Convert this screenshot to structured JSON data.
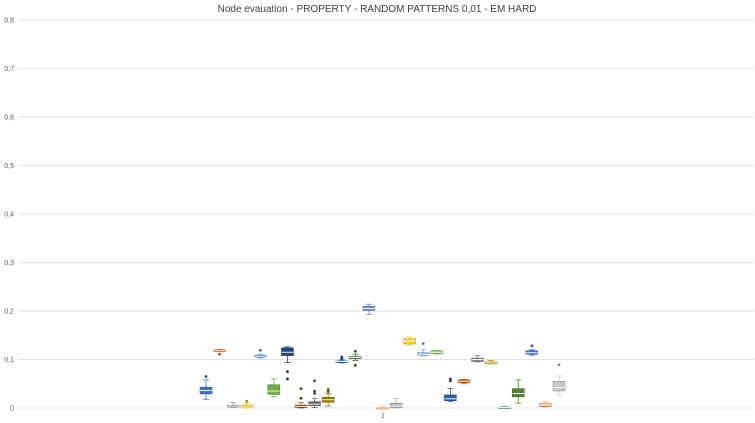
{
  "chart_data": {
    "type": "box",
    "title": "Node evauation - PROPERTY - RANDOM PATTERNS 0,01 - EM HARD",
    "xlabel": "",
    "ylabel": "",
    "categories": [
      "1"
    ],
    "ylim": [
      0,
      0.8
    ],
    "yticks": [
      "0",
      "0,1",
      "0,2",
      "0,3",
      "0,4",
      "0,5",
      "0,6",
      "0,7",
      "0,8"
    ],
    "grid": true,
    "legend": "none",
    "series": [
      {
        "color": "#4472c4",
        "min": 0.018,
        "q1": 0.029,
        "median": 0.036,
        "q3": 0.043,
        "max": 0.058,
        "outliers": [
          0.065
        ]
      },
      {
        "color": "#ed7d31",
        "min": 0.116,
        "q1": 0.116,
        "median": 0.118,
        "q3": 0.12,
        "max": 0.121,
        "outliers": [
          0.111
        ]
      },
      {
        "color": "#a5a5a5",
        "min": 0.001,
        "q1": 0.002,
        "median": 0.004,
        "q3": 0.006,
        "max": 0.011,
        "outliers": []
      },
      {
        "color": "#ffc000",
        "min": 0.0,
        "q1": 0.001,
        "median": 0.002,
        "q3": 0.005,
        "max": 0.009,
        "outliers": [
          0.014
        ]
      },
      {
        "color": "#5b9bd5",
        "min": 0.103,
        "q1": 0.105,
        "median": 0.107,
        "q3": 0.109,
        "max": 0.111,
        "outliers": [
          0.119
        ]
      },
      {
        "color": "#70ad47",
        "min": 0.023,
        "q1": 0.028,
        "median": 0.035,
        "q3": 0.048,
        "max": 0.06,
        "outliers": []
      },
      {
        "color": "#264478",
        "min": 0.094,
        "q1": 0.108,
        "median": 0.115,
        "q3": 0.124,
        "max": 0.126,
        "outliers": [
          0.075,
          0.06
        ]
      },
      {
        "color": "#9e480e",
        "min": 0.0,
        "q1": 0.001,
        "median": 0.003,
        "q3": 0.006,
        "max": 0.011,
        "outliers": [
          0.04,
          0.02
        ]
      },
      {
        "color": "#636363",
        "min": 0.001,
        "q1": 0.005,
        "median": 0.008,
        "q3": 0.013,
        "max": 0.02,
        "outliers": [
          0.056,
          0.035,
          0.03
        ]
      },
      {
        "color": "#997300",
        "min": 0.004,
        "q1": 0.012,
        "median": 0.017,
        "q3": 0.022,
        "max": 0.03,
        "outliers": [
          0.038,
          0.034
        ]
      },
      {
        "color": "#255e91",
        "min": 0.093,
        "q1": 0.094,
        "median": 0.096,
        "q3": 0.097,
        "max": 0.099,
        "outliers": [
          0.102,
          0.105
        ]
      },
      {
        "color": "#43682b",
        "min": 0.098,
        "q1": 0.102,
        "median": 0.104,
        "q3": 0.106,
        "max": 0.111,
        "outliers": [
          0.117,
          0.088
        ]
      },
      {
        "color": "#698ed0",
        "min": 0.193,
        "q1": 0.201,
        "median": 0.205,
        "q3": 0.21,
        "max": 0.214,
        "outliers": []
      },
      {
        "color": "#f1975a",
        "min": 0.0,
        "q1": 0.0,
        "median": 0.0,
        "q3": 0.001,
        "max": 0.002,
        "outliers": []
      },
      {
        "color": "#b7b7b7",
        "min": 0.0,
        "q1": 0.001,
        "median": 0.004,
        "q3": 0.01,
        "max": 0.02,
        "outliers": []
      },
      {
        "color": "#ffcd33",
        "min": 0.13,
        "q1": 0.132,
        "median": 0.138,
        "q3": 0.143,
        "max": 0.147,
        "outliers": []
      },
      {
        "color": "#7cafdd",
        "min": 0.107,
        "q1": 0.109,
        "median": 0.111,
        "q3": 0.114,
        "max": 0.12,
        "outliers": [
          0.133
        ]
      },
      {
        "color": "#8cc168",
        "min": 0.111,
        "q1": 0.112,
        "median": 0.115,
        "q3": 0.118,
        "max": 0.119,
        "outliers": []
      },
      {
        "color": "#335aa1",
        "min": 0.013,
        "q1": 0.015,
        "median": 0.019,
        "q3": 0.027,
        "max": 0.04,
        "outliers": [
          0.06,
          0.056
        ]
      },
      {
        "color": "#d26012",
        "min": 0.05,
        "q1": 0.052,
        "median": 0.055,
        "q3": 0.058,
        "max": 0.059,
        "outliers": []
      },
      {
        "color": "#848484",
        "min": 0.095,
        "q1": 0.096,
        "median": 0.1,
        "q3": 0.103,
        "max": 0.108,
        "outliers": []
      },
      {
        "color": "#cc9a00",
        "min": 0.091,
        "q1": 0.091,
        "median": 0.093,
        "q3": 0.095,
        "max": 0.098,
        "outliers": []
      },
      {
        "color": "#5b9bd5",
        "min": 0.0,
        "q1": 0.0,
        "median": 0.001,
        "q3": 0.002,
        "max": 0.003,
        "outliers": []
      },
      {
        "color": "#548235",
        "min": 0.01,
        "q1": 0.023,
        "median": 0.03,
        "q3": 0.04,
        "max": 0.058,
        "outliers": []
      },
      {
        "color": "#4472c4",
        "min": 0.109,
        "q1": 0.111,
        "median": 0.114,
        "q3": 0.118,
        "max": 0.12,
        "outliers": [
          0.128
        ]
      },
      {
        "color": "#f4b183",
        "min": 0.002,
        "q1": 0.003,
        "median": 0.007,
        "q3": 0.01,
        "max": 0.013,
        "outliers": []
      },
      {
        "color": "#c9c9c9",
        "min": 0.027,
        "q1": 0.035,
        "median": 0.042,
        "q3": 0.055,
        "max": 0.066,
        "outliers": [
          0.089
        ]
      }
    ]
  }
}
